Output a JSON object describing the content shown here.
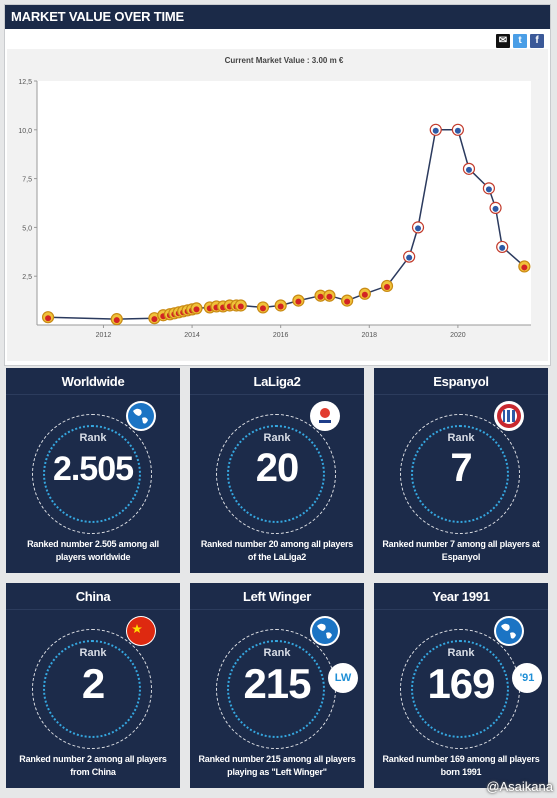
{
  "header": {
    "title": "MARKET VALUE OVER TIME"
  },
  "social": {
    "mail": "✉",
    "twitter": "t",
    "facebook": "f"
  },
  "chart_data": {
    "type": "line",
    "title": "Current Market Value : 3.00 m €",
    "ylim": [
      0,
      12.5
    ],
    "yticks": [
      "2,5",
      "5,0",
      "7,5",
      "10,0",
      "12,5"
    ],
    "xticks": [
      "2012",
      "2014",
      "2016",
      "2018",
      "2020"
    ],
    "xlim": [
      2010.5,
      2021.65
    ],
    "grid": false,
    "x": [
      2010.75,
      2012.3,
      2013.15,
      2013.35,
      2013.5,
      2013.6,
      2013.7,
      2013.8,
      2013.9,
      2014.0,
      2014.1,
      2014.4,
      2014.55,
      2014.7,
      2014.85,
      2015.0,
      2015.1,
      2015.6,
      2016.0,
      2016.4,
      2016.9,
      2017.1,
      2017.5,
      2017.9,
      2018.4,
      2018.9,
      2019.1,
      2019.5,
      2020.0,
      2020.25,
      2020.7,
      2020.85,
      2021.0,
      2021.5
    ],
    "y": [
      0.4,
      0.3,
      0.35,
      0.5,
      0.55,
      0.6,
      0.65,
      0.7,
      0.75,
      0.8,
      0.85,
      0.9,
      0.95,
      0.95,
      1.0,
      1.0,
      1.0,
      0.9,
      1.0,
      1.25,
      1.5,
      1.5,
      1.25,
      1.6,
      2.0,
      3.5,
      5.0,
      10.0,
      10.0,
      8.0,
      7.0,
      6.0,
      4.0,
      3.0
    ]
  },
  "cards": [
    {
      "title": "Worldwide",
      "rank_label": "Rank",
      "rank": "2.505",
      "desc": "Ranked number 2.505 among all players worldwide",
      "badge": "globe-icon",
      "badge2": ""
    },
    {
      "title": "LaLiga2",
      "rank_label": "Rank",
      "rank": "20",
      "desc": "Ranked number 20 among all players of the LaLiga2",
      "badge": "laliga-logo",
      "badge2": ""
    },
    {
      "title": "Espanyol",
      "rank_label": "Rank",
      "rank": "7",
      "desc": "Ranked number 7 among all players at Espanyol",
      "badge": "espanyol-crest",
      "badge2": ""
    },
    {
      "title": "China",
      "rank_label": "Rank",
      "rank": "2",
      "desc": "Ranked number 2 among all players from China",
      "badge": "china-flag",
      "badge2": ""
    },
    {
      "title": "Left Winger",
      "rank_label": "Rank",
      "rank": "215",
      "desc": "Ranked number 215 among all players playing as \"Left Winger\"",
      "badge": "globe-icon",
      "badge2": "LW"
    },
    {
      "title": "Year 1991",
      "rank_label": "Rank",
      "rank": "169",
      "desc": "Ranked number 169 among all players born 1991",
      "badge": "globe-icon",
      "badge2": "'91"
    }
  ],
  "watermark": "@Asaikana",
  "colors": {
    "navy": "#1c2b4a",
    "line": "#2b3a5e",
    "accent": "#35a7e0",
    "marker": "#d22424"
  }
}
